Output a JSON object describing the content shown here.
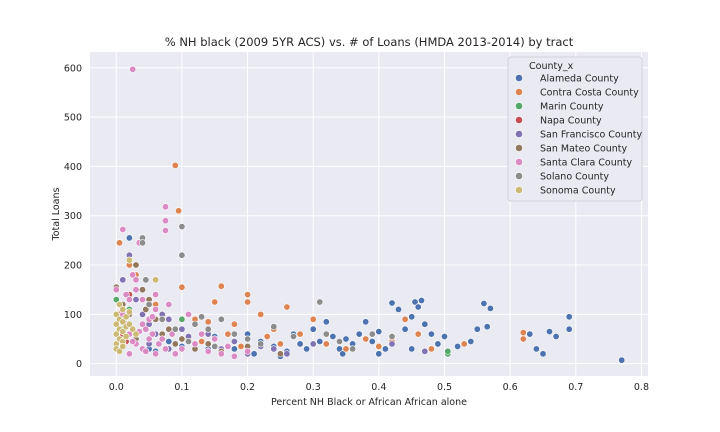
{
  "chart_data": {
    "type": "scatter",
    "title": "% NH black (2009 5YR ACS) vs. # of Loans (HMDA 2013-2014) by tract",
    "xlabel": "Percent NH Black or African African alone",
    "ylabel": "Total Loans",
    "xlim": [
      -0.04,
      0.81
    ],
    "ylim": [
      -25,
      632
    ],
    "xticks": [
      0.0,
      0.1,
      0.2,
      0.3,
      0.4,
      0.5,
      0.6,
      0.7,
      0.8
    ],
    "xtick_labels": [
      "0.0",
      "0.1",
      "0.2",
      "0.3",
      "0.4",
      "0.5",
      "0.6",
      "0.7",
      "0.8"
    ],
    "yticks": [
      0,
      100,
      200,
      300,
      400,
      500,
      600
    ],
    "ytick_labels": [
      "0",
      "100",
      "200",
      "300",
      "400",
      "500",
      "600"
    ],
    "grid": true,
    "legend": {
      "title": "County_x",
      "placement": "top-right"
    },
    "series": [
      {
        "name": "Alameda County",
        "color": "#4c72b0",
        "points": [
          [
            0.02,
            255
          ],
          [
            0.05,
            30
          ],
          [
            0.08,
            45
          ],
          [
            0.12,
            40
          ],
          [
            0.15,
            55
          ],
          [
            0.18,
            30
          ],
          [
            0.2,
            60
          ],
          [
            0.22,
            45
          ],
          [
            0.24,
            35
          ],
          [
            0.26,
            25
          ],
          [
            0.27,
            60
          ],
          [
            0.28,
            40
          ],
          [
            0.3,
            70
          ],
          [
            0.31,
            45
          ],
          [
            0.32,
            85
          ],
          [
            0.33,
            55
          ],
          [
            0.34,
            30
          ],
          [
            0.35,
            50
          ],
          [
            0.36,
            40
          ],
          [
            0.37,
            60
          ],
          [
            0.38,
            85
          ],
          [
            0.39,
            45
          ],
          [
            0.4,
            65
          ],
          [
            0.41,
            30
          ],
          [
            0.42,
            123
          ],
          [
            0.43,
            110
          ],
          [
            0.44,
            70
          ],
          [
            0.45,
            95
          ],
          [
            0.455,
            125
          ],
          [
            0.46,
            115
          ],
          [
            0.465,
            128
          ],
          [
            0.47,
            80
          ],
          [
            0.48,
            60
          ],
          [
            0.49,
            40
          ],
          [
            0.5,
            55
          ],
          [
            0.52,
            35
          ],
          [
            0.54,
            45
          ],
          [
            0.55,
            70
          ],
          [
            0.56,
            122
          ],
          [
            0.565,
            75
          ],
          [
            0.57,
            112
          ],
          [
            0.63,
            60
          ],
          [
            0.64,
            30
          ],
          [
            0.65,
            20
          ],
          [
            0.66,
            65
          ],
          [
            0.67,
            55
          ],
          [
            0.69,
            95
          ],
          [
            0.69,
            70
          ],
          [
            0.77,
            7
          ],
          [
            0.25,
            15
          ],
          [
            0.29,
            30
          ],
          [
            0.345,
            20
          ],
          [
            0.4,
            20
          ],
          [
            0.45,
            30
          ],
          [
            0.06,
            25
          ],
          [
            0.1,
            35
          ],
          [
            0.14,
            30
          ],
          [
            0.21,
            20
          ]
        ]
      },
      {
        "name": "Contra Costa County",
        "color": "#dd8452",
        "points": [
          [
            0.005,
            245
          ],
          [
            0.02,
            200
          ],
          [
            0.03,
            180
          ],
          [
            0.06,
            120
          ],
          [
            0.09,
            402
          ],
          [
            0.095,
            310
          ],
          [
            0.1,
            155
          ],
          [
            0.12,
            90
          ],
          [
            0.15,
            125
          ],
          [
            0.16,
            157
          ],
          [
            0.18,
            80
          ],
          [
            0.2,
            140
          ],
          [
            0.2,
            125
          ],
          [
            0.22,
            100
          ],
          [
            0.24,
            70
          ],
          [
            0.26,
            115
          ],
          [
            0.28,
            60
          ],
          [
            0.3,
            90
          ],
          [
            0.32,
            40
          ],
          [
            0.35,
            30
          ],
          [
            0.38,
            50
          ],
          [
            0.4,
            35
          ],
          [
            0.42,
            45
          ],
          [
            0.44,
            90
          ],
          [
            0.46,
            60
          ],
          [
            0.48,
            30
          ],
          [
            0.53,
            40
          ],
          [
            0.62,
            63
          ],
          [
            0.62,
            50
          ],
          [
            0.13,
            45
          ],
          [
            0.17,
            60
          ],
          [
            0.19,
            35
          ],
          [
            0.23,
            55
          ],
          [
            0.25,
            40
          ],
          [
            0.08,
            70
          ],
          [
            0.11,
            50
          ],
          [
            0.14,
            85
          ]
        ]
      },
      {
        "name": "Marin County",
        "color": "#55a868",
        "points": [
          [
            0.0,
            130
          ],
          [
            0.005,
            90
          ],
          [
            0.01,
            70
          ],
          [
            0.02,
            110
          ],
          [
            0.03,
            60
          ],
          [
            0.04,
            100
          ],
          [
            0.1,
            90
          ],
          [
            0.505,
            20
          ],
          [
            0.505,
            25
          ]
        ]
      },
      {
        "name": "Napa County",
        "color": "#c44e52",
        "points": [
          [
            0.0,
            80
          ],
          [
            0.005,
            100
          ],
          [
            0.01,
            60
          ],
          [
            0.02,
            140
          ],
          [
            0.015,
            45
          ]
        ]
      },
      {
        "name": "San Francisco County",
        "color": "#8172b3",
        "points": [
          [
            0.0,
            150
          ],
          [
            0.01,
            170
          ],
          [
            0.02,
            220
          ],
          [
            0.03,
            130
          ],
          [
            0.04,
            100
          ],
          [
            0.05,
            80
          ],
          [
            0.06,
            60
          ],
          [
            0.07,
            100
          ],
          [
            0.08,
            90
          ],
          [
            0.1,
            70
          ],
          [
            0.11,
            55
          ],
          [
            0.12,
            40
          ],
          [
            0.14,
            60
          ],
          [
            0.16,
            30
          ],
          [
            0.18,
            45
          ],
          [
            0.2,
            20
          ],
          [
            0.22,
            35
          ],
          [
            0.24,
            30
          ],
          [
            0.26,
            20
          ],
          [
            0.3,
            40
          ],
          [
            0.42,
            40
          ],
          [
            0.47,
            25
          ],
          [
            0.02,
            60
          ],
          [
            0.05,
            40
          ],
          [
            0.08,
            30
          ]
        ]
      },
      {
        "name": "San Mateo County",
        "color": "#937860",
        "points": [
          [
            0.0,
            155
          ],
          [
            0.01,
            120
          ],
          [
            0.02,
            100
          ],
          [
            0.03,
            200
          ],
          [
            0.04,
            150
          ],
          [
            0.05,
            130
          ],
          [
            0.06,
            90
          ],
          [
            0.07,
            60
          ],
          [
            0.08,
            70
          ],
          [
            0.09,
            40
          ],
          [
            0.1,
            50
          ],
          [
            0.12,
            30
          ],
          [
            0.14,
            40
          ],
          [
            0.16,
            25
          ],
          [
            0.2,
            35
          ],
          [
            0.25,
            20
          ],
          [
            0.03,
            50
          ],
          [
            0.045,
            110
          ]
        ]
      },
      {
        "name": "Santa Clara County",
        "color": "#da8bc3",
        "points": [
          [
            0.025,
            597
          ],
          [
            0.075,
            318
          ],
          [
            0.075,
            290
          ],
          [
            0.075,
            270
          ],
          [
            0.01,
            272
          ],
          [
            0.0,
            150
          ],
          [
            0.005,
            120
          ],
          [
            0.01,
            100
          ],
          [
            0.015,
            140
          ],
          [
            0.02,
            130
          ],
          [
            0.025,
            180
          ],
          [
            0.03,
            170
          ],
          [
            0.03,
            150
          ],
          [
            0.035,
            245
          ],
          [
            0.04,
            80
          ],
          [
            0.045,
            70
          ],
          [
            0.05,
            90
          ],
          [
            0.055,
            60
          ],
          [
            0.06,
            110
          ],
          [
            0.065,
            40
          ],
          [
            0.07,
            50
          ],
          [
            0.075,
            30
          ],
          [
            0.08,
            120
          ],
          [
            0.085,
            60
          ],
          [
            0.09,
            20
          ],
          [
            0.1,
            30
          ],
          [
            0.11,
            100
          ],
          [
            0.12,
            40
          ],
          [
            0.13,
            60
          ],
          [
            0.14,
            25
          ],
          [
            0.15,
            50
          ],
          [
            0.16,
            20
          ],
          [
            0.17,
            35
          ],
          [
            0.18,
            15
          ],
          [
            0.2,
            25
          ],
          [
            0.02,
            60
          ],
          [
            0.03,
            40
          ],
          [
            0.04,
            30
          ],
          [
            0.05,
            50
          ],
          [
            0.06,
            20
          ],
          [
            0.015,
            80
          ],
          [
            0.025,
            45
          ],
          [
            0.035,
            65
          ],
          [
            0.045,
            25
          ],
          [
            0.055,
            95
          ],
          [
            0.0,
            60
          ],
          [
            0.01,
            40
          ],
          [
            0.02,
            20
          ],
          [
            0.04,
            130
          ],
          [
            0.06,
            140
          ]
        ]
      },
      {
        "name": "Solano County",
        "color": "#8c8c8c",
        "points": [
          [
            0.04,
            255
          ],
          [
            0.04,
            245
          ],
          [
            0.1,
            278
          ],
          [
            0.1,
            220
          ],
          [
            0.045,
            170
          ],
          [
            0.05,
            120
          ],
          [
            0.12,
            80
          ],
          [
            0.14,
            70
          ],
          [
            0.16,
            90
          ],
          [
            0.18,
            60
          ],
          [
            0.2,
            50
          ],
          [
            0.22,
            40
          ],
          [
            0.24,
            75
          ],
          [
            0.27,
            55
          ],
          [
            0.31,
            125
          ],
          [
            0.32,
            60
          ],
          [
            0.34,
            45
          ],
          [
            0.36,
            30
          ],
          [
            0.39,
            60
          ],
          [
            0.42,
            55
          ],
          [
            0.07,
            90
          ],
          [
            0.09,
            70
          ],
          [
            0.11,
            45
          ],
          [
            0.13,
            95
          ],
          [
            0.15,
            35
          ]
        ]
      },
      {
        "name": "Sonoma County",
        "color": "#ccb974",
        "points": [
          [
            0.0,
            100
          ],
          [
            0.0,
            80
          ],
          [
            0.0,
            60
          ],
          [
            0.0,
            40
          ],
          [
            0.005,
            120
          ],
          [
            0.005,
            90
          ],
          [
            0.005,
            70
          ],
          [
            0.005,
            50
          ],
          [
            0.01,
            110
          ],
          [
            0.01,
            85
          ],
          [
            0.01,
            65
          ],
          [
            0.01,
            45
          ],
          [
            0.015,
            95
          ],
          [
            0.015,
            75
          ],
          [
            0.015,
            55
          ],
          [
            0.02,
            210
          ],
          [
            0.02,
            105
          ],
          [
            0.02,
            80
          ],
          [
            0.025,
            70
          ],
          [
            0.03,
            60
          ],
          [
            0.06,
            170
          ],
          [
            0.0,
            30
          ],
          [
            0.005,
            25
          ],
          [
            0.01,
            35
          ]
        ]
      }
    ]
  }
}
